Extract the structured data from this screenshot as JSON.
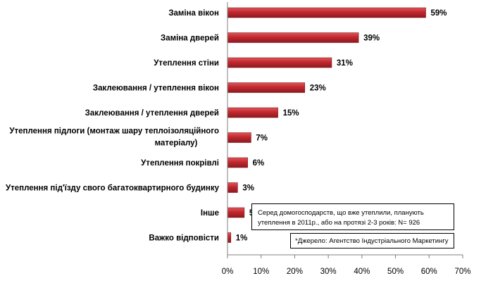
{
  "chart_data": {
    "type": "bar",
    "orientation": "horizontal",
    "categories": [
      [
        "Заміна вікон"
      ],
      [
        "Заміна дверей"
      ],
      [
        "Утеплення стіни"
      ],
      [
        "Заклеювання / утеплення вікон"
      ],
      [
        "Заклеювання / утеплення дверей"
      ],
      [
        "Утеплення підлоги (монтаж шару теплоізоляційного",
        "матеріалу)"
      ],
      [
        "Утеплення покрівлі"
      ],
      [
        "Утеплення під'їзду свого багатоквартирного  будинку"
      ],
      [
        "Інше"
      ],
      [
        "Важко відповісти"
      ]
    ],
    "values": [
      59,
      39,
      31,
      23,
      15,
      7,
      6,
      3,
      5,
      1
    ],
    "value_labels": [
      "59%",
      "39%",
      "31%",
      "23%",
      "15%",
      "7%",
      "6%",
      "3%",
      "5%",
      "1%"
    ],
    "xlim": [
      0,
      70
    ],
    "x_ticks": [
      "0%",
      "10%",
      "20%",
      "30%",
      "40%",
      "50%",
      "60%",
      "70%"
    ],
    "title": "",
    "xlabel": "",
    "ylabel": "",
    "bar_color": "#c0272d",
    "grid": false,
    "legend": "none"
  },
  "notes": {
    "sample_line1": "Серед домогосподарств, що вже утеплили, планують",
    "sample_line2": "утеплення в 2011р.,  або на протязі 2-3 років: N= 926",
    "source": "*Джерело: Агентство Індустріального Маркетингу"
  }
}
